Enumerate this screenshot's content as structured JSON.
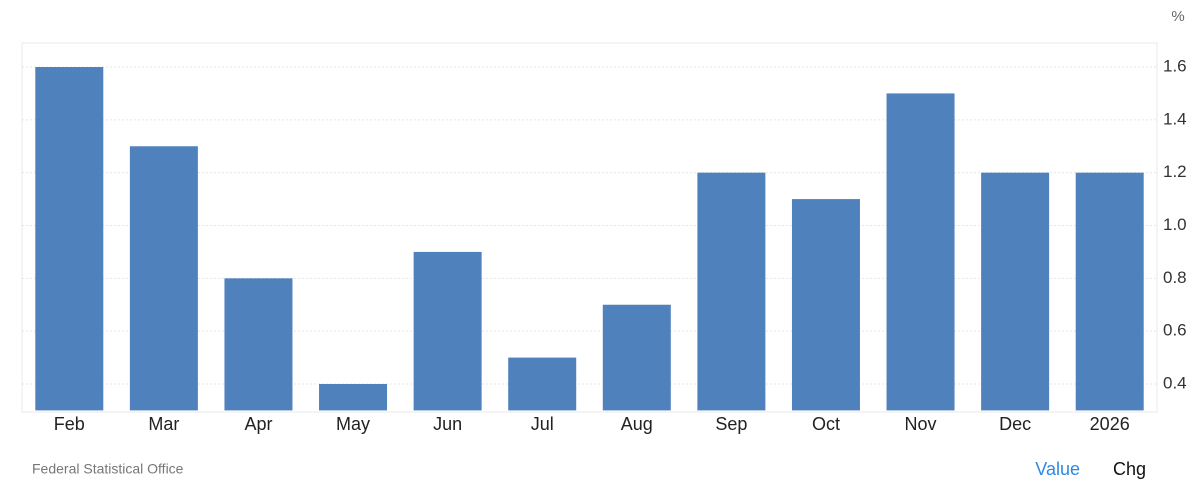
{
  "chart_data": {
    "type": "bar",
    "unit": "%",
    "source": "Federal Statistical Office",
    "categories": [
      "Feb",
      "Mar",
      "Apr",
      "May",
      "Jun",
      "Jul",
      "Aug",
      "Sep",
      "Oct",
      "Nov",
      "Dec",
      "2026"
    ],
    "values": [
      1.6,
      1.3,
      0.8,
      0.4,
      0.9,
      0.5,
      0.7,
      1.2,
      1.1,
      1.5,
      1.2,
      1.2
    ],
    "color": "#4f81bd",
    "ylim": [
      0.3,
      1.7
    ],
    "yticks": [
      0.4,
      0.6,
      0.8,
      {
        "value": 1,
        "label": "1.0"
      },
      1.2,
      1.4,
      1.6
    ],
    "grid": true,
    "buttons": [
      "Value",
      "Chg"
    ]
  }
}
